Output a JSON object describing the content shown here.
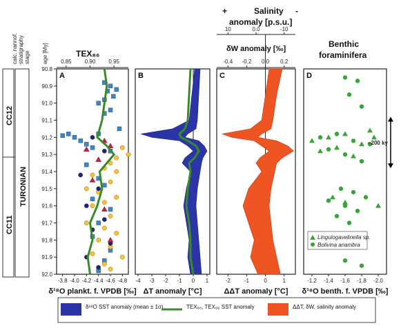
{
  "header": {
    "strat_columns": [
      "calc. nannof.",
      "stratigraphy",
      "stage"
    ],
    "age_label": "age [My]",
    "tex_label": "TEX₈₆",
    "salinity_plus": "+",
    "salinity_label_1": "Salinity",
    "salinity_minus": "-",
    "salinity_label_2": "anomaly [p.s.u.]",
    "dw_label": "δW anomaly [‰]",
    "benthic_label_1": "Benthic",
    "benthic_label_2": "foraminifera"
  },
  "strat": {
    "zone_upper": "CC12",
    "zone_lower": "CC11",
    "stage": "TURONIAN"
  },
  "colors": {
    "blue_fill": "#2b35a8",
    "green_line": "#3a8a2a",
    "orange_fill": "#ee5522",
    "cyan_pts": "#3b87c5",
    "yellow_pts": "#f7c233",
    "benthic": "#3aa33a"
  },
  "chart_data": [
    {
      "panel": "A",
      "type": "scatter",
      "xlabel": "δ¹⁸O plankt. f. VPDB [‰]",
      "xticks": [
        "-3.8",
        "-4.0",
        "-4.2",
        "-4.4",
        "-4.6",
        "-4.8"
      ],
      "xlim": [
        -3.7,
        -4.9
      ],
      "top_axis": {
        "label": "TEX₈₆",
        "ticks": [
          "0.85",
          "0.90",
          "0.95"
        ]
      },
      "yticks": [
        "90.8",
        "90.9",
        "91.0",
        "91.1",
        "91.2",
        "91.3",
        "91.4",
        "91.5",
        "91.6",
        "91.7",
        "91.8",
        "91.9",
        "92.0"
      ],
      "ylim": [
        90.8,
        92.0
      ],
      "series": [
        {
          "color": "#3b87c5",
          "shape": "square",
          "points": [
            [
              -4.5,
              90.88
            ],
            [
              -4.6,
              90.9
            ],
            [
              -4.55,
              90.93
            ],
            [
              -4.65,
              90.96
            ],
            [
              -4.5,
              90.98
            ],
            [
              -4.7,
              90.92
            ],
            [
              -4.4,
              91.0
            ],
            [
              -4.6,
              91.04
            ],
            [
              -4.5,
              91.06
            ],
            [
              -4.75,
              91.15
            ],
            [
              -4.4,
              91.18
            ],
            [
              -3.9,
              91.18
            ],
            [
              -4.0,
              91.2
            ],
            [
              -3.8,
              91.19
            ],
            [
              -4.1,
              91.22
            ],
            [
              -4.2,
              91.24
            ],
            [
              -4.3,
              91.26
            ],
            [
              -4.6,
              91.28
            ],
            [
              -4.2,
              91.36
            ],
            [
              -4.4,
              91.44
            ],
            [
              -4.5,
              91.48
            ],
            [
              -4.3,
              91.56
            ],
            [
              -4.6,
              91.62
            ],
            [
              -4.4,
              91.7
            ],
            [
              -4.3,
              91.78
            ],
            [
              -4.6,
              91.86
            ],
            [
              -4.5,
              91.92
            ],
            [
              -4.4,
              91.98
            ]
          ]
        },
        {
          "color": "#f7c233",
          "shape": "circle",
          "points": [
            [
              -4.8,
              91.26
            ],
            [
              -4.9,
              91.3
            ],
            [
              -4.7,
              91.32
            ],
            [
              -4.6,
              91.35
            ],
            [
              -4.5,
              91.38
            ],
            [
              -4.7,
              91.4
            ],
            [
              -4.3,
              91.42
            ],
            [
              -4.6,
              91.46
            ],
            [
              -4.2,
              91.5
            ],
            [
              -4.4,
              91.52
            ],
            [
              -4.7,
              91.55
            ],
            [
              -4.5,
              91.58
            ],
            [
              -4.3,
              91.6
            ],
            [
              -4.6,
              91.66
            ],
            [
              -4.2,
              91.7
            ],
            [
              -4.5,
              91.73
            ],
            [
              -4.7,
              91.76
            ],
            [
              -4.4,
              91.8
            ],
            [
              -4.6,
              91.84
            ],
            [
              -4.3,
              91.88
            ],
            [
              -4.8,
              91.9
            ],
            [
              -4.5,
              91.94
            ],
            [
              -4.6,
              91.97
            ]
          ]
        },
        {
          "color": "#1a237e",
          "shape": "circle",
          "points": [
            [
              -4.3,
              91.2
            ],
            [
              -4.5,
              91.28
            ],
            [
              -4.1,
              91.42
            ],
            [
              -4.4,
              91.5
            ],
            [
              -4.2,
              91.6
            ],
            [
              -4.5,
              91.68
            ],
            [
              -4.3,
              91.74
            ],
            [
              -4.6,
              91.82
            ],
            [
              -4.2,
              91.9
            ],
            [
              -4.4,
              91.96
            ]
          ]
        },
        {
          "color": "#d8144e",
          "shape": "triangle",
          "points": [
            [
              -4.5,
              91.22
            ],
            [
              -4.6,
              91.25
            ],
            [
              -4.2,
              91.27
            ],
            [
              -4.4,
              91.33
            ],
            [
              -4.3,
              91.45
            ],
            [
              -4.5,
              91.62
            ],
            [
              -4.6,
              91.8
            ]
          ]
        }
      ],
      "tex_line": [
        [
          0.93,
          90.8
        ],
        [
          0.935,
          90.9
        ],
        [
          0.93,
          91.0
        ],
        [
          0.925,
          91.1
        ],
        [
          0.92,
          91.15
        ],
        [
          0.915,
          91.2
        ],
        [
          0.935,
          91.25
        ],
        [
          0.95,
          91.3
        ],
        [
          0.935,
          91.35
        ],
        [
          0.92,
          91.4
        ],
        [
          0.925,
          91.5
        ],
        [
          0.915,
          91.6
        ],
        [
          0.9,
          91.7
        ],
        [
          0.905,
          91.8
        ],
        [
          0.895,
          91.9
        ],
        [
          0.9,
          92.0
        ]
      ]
    },
    {
      "panel": "B",
      "type": "area",
      "xlabel": "ΔT anomaly [°C]",
      "xticks": [
        "-4",
        "-3",
        "-2",
        "-1",
        "0",
        "1"
      ],
      "xlim": [
        -4.2,
        1.2
      ],
      "blue_band": [
        [
          90.8,
          0.1,
          0.5
        ],
        [
          90.95,
          -0.1,
          0.4
        ],
        [
          91.1,
          -0.3,
          0.3
        ],
        [
          91.15,
          -1.5,
          0.2
        ],
        [
          91.18,
          -3.8,
          -0.4
        ],
        [
          91.2,
          -3.0,
          -0.6
        ],
        [
          91.22,
          -1.0,
          0.4
        ],
        [
          91.25,
          -0.4,
          0.8
        ],
        [
          91.28,
          0.0,
          1.0
        ],
        [
          91.32,
          -0.6,
          0.7
        ],
        [
          91.35,
          -0.8,
          0.6
        ],
        [
          91.4,
          -0.2,
          0.5
        ],
        [
          91.5,
          -0.5,
          0.3
        ],
        [
          91.6,
          -0.7,
          0.2
        ],
        [
          91.7,
          -0.5,
          0.3
        ],
        [
          91.8,
          -0.3,
          0.4
        ],
        [
          91.9,
          -0.4,
          0.5
        ],
        [
          92.0,
          -0.2,
          0.6
        ]
      ],
      "green_line": [
        [
          90.8,
          -0.2
        ],
        [
          90.95,
          -0.3
        ],
        [
          91.1,
          -0.4
        ],
        [
          91.15,
          -0.6
        ],
        [
          91.18,
          -1.0
        ],
        [
          91.2,
          -0.9
        ],
        [
          91.22,
          -0.4
        ],
        [
          91.25,
          0.2
        ],
        [
          91.28,
          0.4
        ],
        [
          91.32,
          0.1
        ],
        [
          91.35,
          -0.3
        ],
        [
          91.4,
          -0.2
        ],
        [
          91.5,
          -0.4
        ],
        [
          91.6,
          -0.5
        ],
        [
          91.7,
          -0.3
        ],
        [
          91.8,
          -0.2
        ],
        [
          91.9,
          -0.2
        ],
        [
          92.0,
          0.0
        ]
      ]
    },
    {
      "panel": "C",
      "type": "area",
      "xlabel": "ΔΔT anomaly [°C]",
      "xticks": [
        "-2",
        "-1",
        "0",
        "1"
      ],
      "xlim": [
        -2.6,
        1.6
      ],
      "top_axis_salinity": {
        "ticks": [
          "10",
          "0.0",
          "-10"
        ]
      },
      "top_axis_dw": {
        "ticks": [
          "-0.4",
          "-0.2",
          "0.0",
          "0.2"
        ]
      },
      "orange_band": [
        [
          90.8,
          0.2,
          0.9
        ],
        [
          90.95,
          0.0,
          0.6
        ],
        [
          91.1,
          -0.2,
          0.4
        ],
        [
          91.15,
          -0.8,
          0.3
        ],
        [
          91.18,
          -2.3,
          -0.2
        ],
        [
          91.2,
          -1.8,
          -0.4
        ],
        [
          91.22,
          -0.6,
          0.6
        ],
        [
          91.25,
          -0.2,
          1.2
        ],
        [
          91.28,
          0.2,
          1.5
        ],
        [
          91.32,
          -0.3,
          0.9
        ],
        [
          91.35,
          -0.5,
          0.6
        ],
        [
          91.4,
          -0.2,
          0.5
        ],
        [
          91.5,
          -0.9,
          0.3
        ],
        [
          91.6,
          -1.2,
          0.2
        ],
        [
          91.7,
          -0.9,
          0.3
        ],
        [
          91.8,
          -0.6,
          0.4
        ],
        [
          91.9,
          -0.8,
          0.6
        ],
        [
          92.0,
          -0.4,
          0.8
        ]
      ]
    },
    {
      "panel": "D",
      "type": "scatter",
      "xlabel": "δ¹⁸O benth. f. VPDB [‰]",
      "xticks": [
        "-1.2",
        "-1.4",
        "-1.6",
        "-1.8",
        "-2.0"
      ],
      "xlim": [
        -1.1,
        -2.1
      ],
      "annotation": "~200 ky",
      "legend": [
        "Lingulogavelinella sp.",
        "Bolivina anambra"
      ],
      "series": [
        {
          "name": "Lingulogavelinella sp.",
          "shape": "triangle",
          "color": "#3aa33a",
          "points": [
            [
              -1.9,
              91.16
            ],
            [
              -1.6,
              91.18
            ],
            [
              -1.4,
              91.2
            ],
            [
              -1.2,
              91.22
            ],
            [
              -1.8,
              91.24
            ],
            [
              -1.5,
              91.26
            ],
            [
              -1.3,
              91.28
            ],
            [
              -1.7,
              91.31
            ],
            [
              -1.95,
              91.2
            ],
            [
              -2.0,
              91.6
            ],
            [
              -1.45,
              91.55
            ],
            [
              -1.6,
              91.58
            ]
          ]
        },
        {
          "name": "Bolivina anambra",
          "shape": "circle",
          "color": "#3aa33a",
          "points": [
            [
              -1.6,
              90.85
            ],
            [
              -1.75,
              90.87
            ],
            [
              -1.65,
              90.95
            ],
            [
              -1.8,
              91.02
            ],
            [
              -1.5,
              91.18
            ],
            [
              -1.3,
              91.2
            ],
            [
              -1.7,
              91.22
            ],
            [
              -1.9,
              91.24
            ],
            [
              -1.4,
              91.27
            ],
            [
              -1.6,
              91.3
            ],
            [
              -1.8,
              91.34
            ],
            [
              -1.55,
              91.5
            ],
            [
              -1.7,
              91.52
            ],
            [
              -1.85,
              91.55
            ],
            [
              -1.4,
              91.57
            ],
            [
              -1.6,
              91.6
            ],
            [
              -1.75,
              91.63
            ],
            [
              -1.5,
              91.66
            ],
            [
              -1.65,
              91.7
            ],
            [
              -1.7,
              91.8
            ],
            [
              -1.6,
              91.92
            ],
            [
              -1.8,
              91.95
            ]
          ]
        }
      ]
    }
  ],
  "legend": {
    "blue": "δ¹⁸O SST anomaly (mean ± 1σ)",
    "green": "TEX₈₆, TEX₈₆ SST anomaly",
    "orange": "ΔΔT, δW, salinity anomaly"
  }
}
